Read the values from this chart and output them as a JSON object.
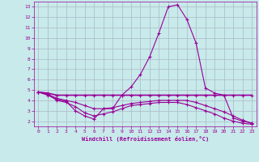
{
  "xlabel": "Windchill (Refroidissement éolien,°C)",
  "bg_color": "#c8eaea",
  "grid_color": "#aab8c8",
  "line_color": "#990099",
  "x_values": [
    0,
    1,
    2,
    3,
    4,
    5,
    6,
    7,
    8,
    9,
    10,
    11,
    12,
    13,
    14,
    15,
    16,
    17,
    18,
    19,
    20,
    21,
    22,
    23
  ],
  "line1": [
    4.8,
    4.5,
    4.1,
    3.9,
    3.0,
    2.5,
    2.2,
    3.2,
    3.2,
    4.5,
    5.3,
    6.5,
    8.2,
    10.5,
    13.0,
    13.2,
    11.8,
    9.5,
    5.2,
    4.7,
    4.5,
    2.3,
    2.0,
    1.8
  ],
  "line2": [
    4.8,
    4.7,
    4.5,
    4.5,
    4.5,
    4.5,
    4.5,
    4.5,
    4.5,
    4.5,
    4.5,
    4.5,
    4.5,
    4.5,
    4.5,
    4.5,
    4.5,
    4.5,
    4.5,
    4.5,
    4.5,
    4.5,
    4.5,
    4.5
  ],
  "line3": [
    4.8,
    4.6,
    4.2,
    4.0,
    3.8,
    3.5,
    3.2,
    3.2,
    3.3,
    3.5,
    3.7,
    3.8,
    3.9,
    4.0,
    4.0,
    4.0,
    4.0,
    3.8,
    3.5,
    3.2,
    2.9,
    2.5,
    2.1,
    1.8
  ],
  "line4": [
    4.8,
    4.6,
    4.0,
    3.8,
    3.4,
    2.8,
    2.5,
    2.7,
    2.9,
    3.2,
    3.5,
    3.6,
    3.7,
    3.8,
    3.8,
    3.8,
    3.6,
    3.3,
    3.0,
    2.7,
    2.3,
    2.0,
    1.8,
    1.7
  ],
  "ylim": [
    1.5,
    13.5
  ],
  "xlim": [
    -0.5,
    23.5
  ],
  "yticks": [
    2,
    3,
    4,
    5,
    6,
    7,
    8,
    9,
    10,
    11,
    12,
    13
  ],
  "xticks": [
    0,
    1,
    2,
    3,
    4,
    5,
    6,
    7,
    8,
    9,
    10,
    11,
    12,
    13,
    14,
    15,
    16,
    17,
    18,
    19,
    20,
    21,
    22,
    23
  ]
}
